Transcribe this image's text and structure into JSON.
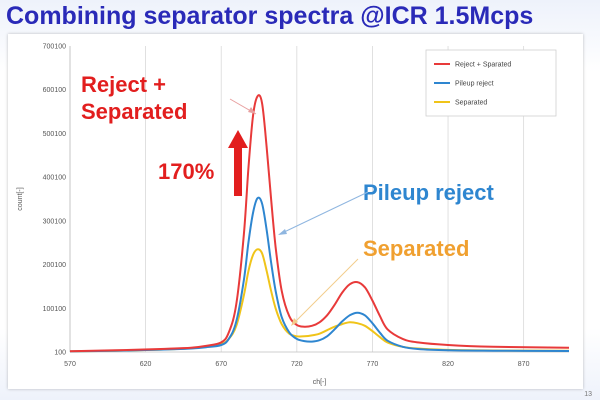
{
  "slide": {
    "title": "Combining separator spectra @ICR 1.5Mcps",
    "page_number": "13"
  },
  "chart_data": {
    "type": "line",
    "xlabel": "ch[-]",
    "ylabel": "count[-]",
    "xlim": [
      570,
      900
    ],
    "ylim": [
      100,
      700100
    ],
    "xticks": [
      570,
      620,
      670,
      720,
      770,
      820,
      870
    ],
    "yticks": [
      100,
      100100,
      200100,
      300100,
      400100,
      500100,
      600100,
      700100
    ],
    "grid": "vertical",
    "legend": "top-right",
    "series": [
      {
        "name": "Reject + Sparated",
        "color": "#e83a3a",
        "x": [
          570,
          600,
          630,
          650,
          660,
          670,
          675,
          680,
          685,
          688,
          691,
          694,
          697,
          700,
          703,
          706,
          710,
          715,
          720,
          725,
          730,
          735,
          740,
          745,
          750,
          755,
          760,
          765,
          770,
          775,
          780,
          790,
          800,
          820,
          850,
          900
        ],
        "y": [
          2000,
          4000,
          7000,
          10000,
          14000,
          22000,
          45000,
          110000,
          270000,
          420000,
          540000,
          585000,
          570000,
          470000,
          350000,
          240000,
          140000,
          82000,
          62000,
          58000,
          60000,
          68000,
          84000,
          108000,
          136000,
          155000,
          160000,
          148000,
          118000,
          82000,
          52000,
          30000,
          22000,
          16000,
          12000,
          10000
        ]
      },
      {
        "name": "Pileup reject",
        "color": "#2e86d0",
        "x": [
          570,
          600,
          630,
          650,
          660,
          670,
          675,
          680,
          685,
          688,
          691,
          694,
          697,
          700,
          703,
          706,
          710,
          715,
          720,
          725,
          730,
          735,
          740,
          745,
          750,
          755,
          760,
          765,
          770,
          775,
          780,
          790,
          800,
          820,
          850,
          900
        ],
        "y": [
          1500,
          3000,
          5500,
          8000,
          11000,
          16000,
          30000,
          70000,
          165000,
          250000,
          318000,
          352000,
          340000,
          280000,
          205000,
          140000,
          80000,
          45000,
          30000,
          25000,
          24000,
          27000,
          36000,
          52000,
          70000,
          84000,
          90000,
          84000,
          66000,
          44000,
          26000,
          12000,
          7000,
          4000,
          3000,
          2500
        ]
      },
      {
        "name": "Separated",
        "color": "#f0c419",
        "x": [
          570,
          600,
          630,
          650,
          660,
          670,
          675,
          680,
          685,
          688,
          691,
          694,
          697,
          700,
          703,
          706,
          710,
          715,
          720,
          725,
          730,
          735,
          740,
          745,
          750,
          755,
          760,
          765,
          770,
          775,
          780,
          790,
          800,
          820,
          850,
          900
        ],
        "y": [
          1500,
          3000,
          5500,
          8500,
          12000,
          18000,
          30000,
          60000,
          130000,
          185000,
          222000,
          235000,
          226000,
          186000,
          140000,
          100000,
          64000,
          42000,
          36000,
          36000,
          38000,
          42000,
          50000,
          58000,
          64000,
          68000,
          66000,
          60000,
          48000,
          34000,
          22000,
          12000,
          8000,
          5000,
          3500,
          3000
        ]
      }
    ],
    "annotations": [
      {
        "text": "Reject +",
        "color": "#e21e1e"
      },
      {
        "text": "Separated",
        "color": "#e21e1e"
      },
      {
        "text": "170%",
        "color": "#e21e1e"
      },
      {
        "text": "Pileup reject",
        "color": "#2e86d0"
      },
      {
        "text": "Separated",
        "color": "#f0a030"
      }
    ]
  }
}
